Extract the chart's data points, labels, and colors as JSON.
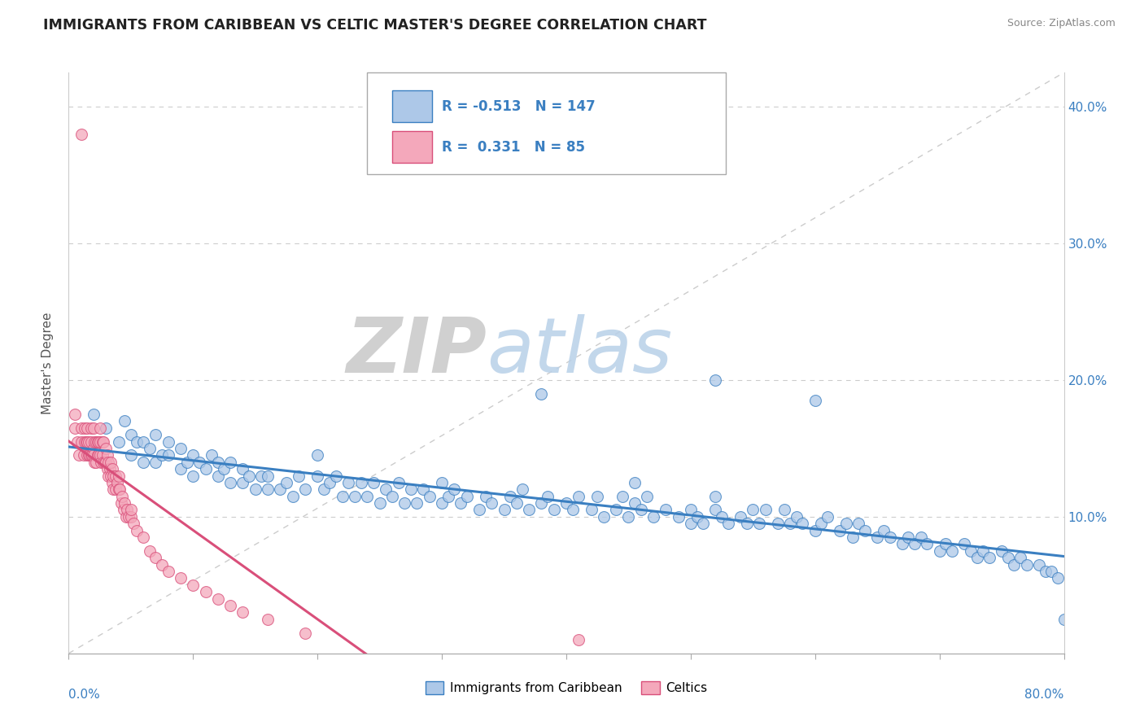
{
  "title": "IMMIGRANTS FROM CARIBBEAN VS CELTIC MASTER'S DEGREE CORRELATION CHART",
  "source": "Source: ZipAtlas.com",
  "ylabel": "Master's Degree",
  "legend_label1": "Immigrants from Caribbean",
  "legend_label2": "Celtics",
  "R1": -0.513,
  "N1": 147,
  "R2": 0.331,
  "N2": 85,
  "color1": "#adc8e8",
  "color2": "#f4a8bb",
  "trendline1_color": "#3a7fc1",
  "trendline2_color": "#d94f7a",
  "watermark_zip": "ZIP",
  "watermark_atlas": "atlas",
  "ytick_values": [
    0.0,
    0.1,
    0.2,
    0.3,
    0.4
  ],
  "xmin": 0.0,
  "xmax": 0.8,
  "ymin": 0.0,
  "ymax": 0.425,
  "blue_x": [
    0.02,
    0.03,
    0.04,
    0.045,
    0.05,
    0.05,
    0.055,
    0.06,
    0.06,
    0.065,
    0.07,
    0.07,
    0.075,
    0.08,
    0.08,
    0.09,
    0.09,
    0.095,
    0.1,
    0.1,
    0.105,
    0.11,
    0.115,
    0.12,
    0.12,
    0.125,
    0.13,
    0.13,
    0.14,
    0.14,
    0.145,
    0.15,
    0.155,
    0.16,
    0.16,
    0.17,
    0.175,
    0.18,
    0.185,
    0.19,
    0.2,
    0.2,
    0.205,
    0.21,
    0.215,
    0.22,
    0.225,
    0.23,
    0.235,
    0.24,
    0.245,
    0.25,
    0.255,
    0.26,
    0.265,
    0.27,
    0.275,
    0.28,
    0.285,
    0.29,
    0.3,
    0.3,
    0.305,
    0.31,
    0.315,
    0.32,
    0.33,
    0.335,
    0.34,
    0.35,
    0.355,
    0.36,
    0.365,
    0.37,
    0.38,
    0.385,
    0.39,
    0.4,
    0.405,
    0.41,
    0.42,
    0.425,
    0.43,
    0.44,
    0.445,
    0.45,
    0.455,
    0.46,
    0.465,
    0.47,
    0.48,
    0.49,
    0.5,
    0.5,
    0.505,
    0.51,
    0.52,
    0.52,
    0.525,
    0.53,
    0.54,
    0.545,
    0.55,
    0.555,
    0.56,
    0.57,
    0.575,
    0.58,
    0.585,
    0.59,
    0.6,
    0.605,
    0.61,
    0.62,
    0.625,
    0.63,
    0.635,
    0.64,
    0.65,
    0.655,
    0.66,
    0.67,
    0.675,
    0.68,
    0.685,
    0.69,
    0.7,
    0.705,
    0.71,
    0.72,
    0.725,
    0.73,
    0.735,
    0.74,
    0.75,
    0.755,
    0.76,
    0.765,
    0.77,
    0.78,
    0.785,
    0.79,
    0.795,
    0.8,
    0.455,
    0.38,
    0.52,
    0.6
  ],
  "blue_y": [
    0.175,
    0.165,
    0.155,
    0.17,
    0.145,
    0.16,
    0.155,
    0.14,
    0.155,
    0.15,
    0.14,
    0.16,
    0.145,
    0.145,
    0.155,
    0.135,
    0.15,
    0.14,
    0.13,
    0.145,
    0.14,
    0.135,
    0.145,
    0.13,
    0.14,
    0.135,
    0.125,
    0.14,
    0.125,
    0.135,
    0.13,
    0.12,
    0.13,
    0.12,
    0.13,
    0.12,
    0.125,
    0.115,
    0.13,
    0.12,
    0.13,
    0.145,
    0.12,
    0.125,
    0.13,
    0.115,
    0.125,
    0.115,
    0.125,
    0.115,
    0.125,
    0.11,
    0.12,
    0.115,
    0.125,
    0.11,
    0.12,
    0.11,
    0.12,
    0.115,
    0.11,
    0.125,
    0.115,
    0.12,
    0.11,
    0.115,
    0.105,
    0.115,
    0.11,
    0.105,
    0.115,
    0.11,
    0.12,
    0.105,
    0.11,
    0.115,
    0.105,
    0.11,
    0.105,
    0.115,
    0.105,
    0.115,
    0.1,
    0.105,
    0.115,
    0.1,
    0.11,
    0.105,
    0.115,
    0.1,
    0.105,
    0.1,
    0.095,
    0.105,
    0.1,
    0.095,
    0.105,
    0.115,
    0.1,
    0.095,
    0.1,
    0.095,
    0.105,
    0.095,
    0.105,
    0.095,
    0.105,
    0.095,
    0.1,
    0.095,
    0.09,
    0.095,
    0.1,
    0.09,
    0.095,
    0.085,
    0.095,
    0.09,
    0.085,
    0.09,
    0.085,
    0.08,
    0.085,
    0.08,
    0.085,
    0.08,
    0.075,
    0.08,
    0.075,
    0.08,
    0.075,
    0.07,
    0.075,
    0.07,
    0.075,
    0.07,
    0.065,
    0.07,
    0.065,
    0.065,
    0.06,
    0.06,
    0.055,
    0.025,
    0.125,
    0.19,
    0.2,
    0.185
  ],
  "pink_x": [
    0.005,
    0.005,
    0.007,
    0.008,
    0.01,
    0.01,
    0.01,
    0.012,
    0.013,
    0.013,
    0.014,
    0.015,
    0.015,
    0.015,
    0.016,
    0.016,
    0.017,
    0.018,
    0.018,
    0.018,
    0.019,
    0.02,
    0.02,
    0.02,
    0.021,
    0.021,
    0.022,
    0.022,
    0.023,
    0.023,
    0.024,
    0.024,
    0.025,
    0.025,
    0.025,
    0.026,
    0.027,
    0.027,
    0.028,
    0.028,
    0.029,
    0.03,
    0.03,
    0.031,
    0.031,
    0.032,
    0.032,
    0.033,
    0.034,
    0.034,
    0.035,
    0.035,
    0.036,
    0.036,
    0.038,
    0.038,
    0.039,
    0.04,
    0.04,
    0.041,
    0.042,
    0.043,
    0.044,
    0.045,
    0.046,
    0.047,
    0.048,
    0.05,
    0.05,
    0.052,
    0.055,
    0.06,
    0.065,
    0.07,
    0.075,
    0.08,
    0.09,
    0.1,
    0.11,
    0.12,
    0.13,
    0.14,
    0.16,
    0.19,
    0.41
  ],
  "pink_y": [
    0.165,
    0.175,
    0.155,
    0.145,
    0.38,
    0.165,
    0.155,
    0.145,
    0.155,
    0.165,
    0.155,
    0.145,
    0.155,
    0.165,
    0.145,
    0.155,
    0.145,
    0.145,
    0.155,
    0.165,
    0.145,
    0.15,
    0.165,
    0.145,
    0.14,
    0.155,
    0.14,
    0.155,
    0.145,
    0.155,
    0.145,
    0.155,
    0.165,
    0.155,
    0.145,
    0.14,
    0.155,
    0.145,
    0.14,
    0.155,
    0.14,
    0.15,
    0.14,
    0.135,
    0.145,
    0.13,
    0.14,
    0.135,
    0.13,
    0.14,
    0.135,
    0.125,
    0.13,
    0.12,
    0.12,
    0.13,
    0.125,
    0.12,
    0.13,
    0.12,
    0.11,
    0.115,
    0.105,
    0.11,
    0.1,
    0.105,
    0.1,
    0.1,
    0.105,
    0.095,
    0.09,
    0.085,
    0.075,
    0.07,
    0.065,
    0.06,
    0.055,
    0.05,
    0.045,
    0.04,
    0.035,
    0.03,
    0.025,
    0.015,
    0.01
  ]
}
